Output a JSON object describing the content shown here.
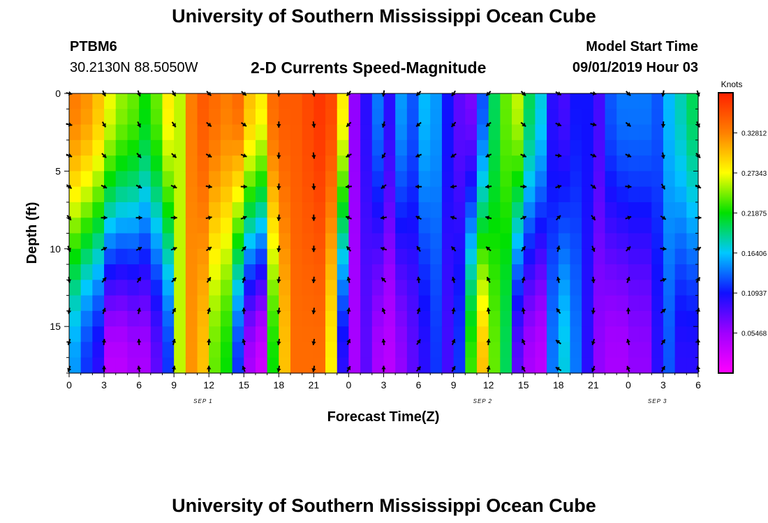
{
  "header": {
    "title": "University of Southern Mississippi Ocean Cube",
    "station_id": "PTBM6",
    "station_coords": "30.2130N 88.5050W",
    "plot_title": "2-D Currents Speed-Magnitude",
    "model_start_label": "Model Start Time",
    "model_start_value": "09/01/2019 Hour 03"
  },
  "footer": {
    "title": "University of Southern Mississippi Ocean Cube"
  },
  "colors": {
    "ramp": [
      "#ff00ff",
      "#a000ff",
      "#1010ff",
      "#00c8ff",
      "#00e000",
      "#ffff00",
      "#ff8000",
      "#ff2000"
    ]
  },
  "chart_data": {
    "type": "heatmap",
    "xlabel": "Forecast Time(Z)",
    "ylabel": "Depth (ft)",
    "x_range_hours": [
      0,
      54
    ],
    "y_range_ft": [
      0,
      18
    ],
    "x_ticks": [
      0,
      3,
      6,
      9,
      12,
      15,
      18,
      21,
      24,
      27,
      30,
      33,
      36,
      39,
      42,
      45,
      48,
      51,
      54
    ],
    "x_tick_labels": [
      "0",
      "3",
      "6",
      "9",
      "12",
      "15",
      "18",
      "21",
      "0",
      "3",
      "6",
      "9",
      "12",
      "15",
      "18",
      "21",
      "0",
      "3",
      "6"
    ],
    "y_ticks": [
      0,
      5,
      10,
      15
    ],
    "y_tick_labels": [
      "0",
      "5",
      "10",
      "15"
    ],
    "date_labels": [
      {
        "hour": 11.5,
        "text": "SEP 1"
      },
      {
        "hour": 35.5,
        "text": "SEP 2"
      },
      {
        "hour": 50.5,
        "text": "SEP 3"
      }
    ],
    "colorbar": {
      "unit": "Knots",
      "range": [
        0,
        0.383
      ],
      "ticks": [
        0.32812,
        0.27343,
        0.21875,
        0.16406,
        0.10937,
        0.05468
      ],
      "tick_labels": [
        "0.32812",
        "0.27343",
        "0.21875",
        "0.16406",
        "0.10937",
        "0.05468"
      ]
    },
    "grid_x_hours": [
      0,
      1,
      2,
      3,
      4,
      5,
      6,
      7,
      8,
      9,
      10,
      11,
      12,
      13,
      14,
      15,
      16,
      17,
      18,
      19,
      20,
      21,
      22,
      23,
      24,
      25,
      26,
      27,
      28,
      29,
      30,
      31,
      32,
      33,
      34,
      35,
      36,
      37,
      38,
      39,
      40,
      41,
      42,
      43,
      44,
      45,
      46,
      47,
      48,
      49,
      50,
      51,
      52,
      53,
      54
    ],
    "grid_depth_ft": [
      0,
      1,
      2,
      3,
      4,
      5,
      6,
      7,
      8,
      9,
      10,
      11,
      12,
      13,
      14,
      15,
      16,
      17,
      18
    ],
    "speed_profile": {
      "surface_knots": [
        0.33,
        0.32,
        0.3,
        0.27,
        0.25,
        0.24,
        0.22,
        0.24,
        0.28,
        0.26,
        0.33,
        0.35,
        0.34,
        0.33,
        0.34,
        0.3,
        0.28,
        0.34,
        0.35,
        0.35,
        0.36,
        0.37,
        0.36,
        0.28,
        0.06,
        0.1,
        0.14,
        0.1,
        0.15,
        0.13,
        0.16,
        0.15,
        0.11,
        0.08,
        0.07,
        0.13,
        0.2,
        0.24,
        0.26,
        0.2,
        0.17,
        0.1,
        0.09,
        0.11,
        0.11,
        0.09,
        0.13,
        0.14,
        0.14,
        0.14,
        0.13,
        0.16,
        0.18,
        0.2,
        0.17
      ],
      "bottom_knots": [
        0.15,
        0.12,
        0.1,
        0.04,
        0.04,
        0.05,
        0.05,
        0.08,
        0.12,
        0.26,
        0.32,
        0.3,
        0.24,
        0.22,
        0.12,
        0.05,
        0.03,
        0.22,
        0.3,
        0.34,
        0.34,
        0.34,
        0.28,
        0.1,
        0.05,
        0.08,
        0.05,
        0.04,
        0.06,
        0.08,
        0.1,
        0.12,
        0.09,
        0.12,
        0.23,
        0.3,
        0.24,
        0.2,
        0.08,
        0.05,
        0.04,
        0.14,
        0.17,
        0.14,
        0.1,
        0.06,
        0.05,
        0.05,
        0.06,
        0.06,
        0.1,
        0.13,
        0.1,
        0.1,
        0.06
      ]
    },
    "vectors": {
      "hours": [
        0,
        3,
        6,
        9,
        12,
        15,
        18,
        21,
        24,
        27,
        30,
        33,
        36,
        39,
        42,
        45,
        48,
        51,
        54
      ],
      "depths_ft": [
        0,
        2,
        4,
        6,
        8,
        10,
        12,
        14,
        16,
        18
      ],
      "surface_dir_deg": [
        100,
        155,
        160,
        150,
        135,
        130,
        180,
        170,
        220,
        190,
        225,
        215,
        225,
        135,
        120,
        100,
        135,
        190,
        160
      ],
      "bottom_dir_deg": [
        200,
        0,
        350,
        10,
        0,
        340,
        190,
        190,
        30,
        0,
        40,
        30,
        10,
        330,
        300,
        200,
        340,
        30,
        350
      ]
    }
  }
}
